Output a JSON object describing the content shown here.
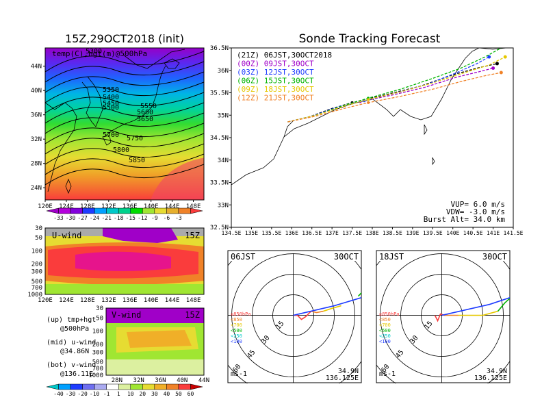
{
  "chart_data": [
    {
      "type": "heatmap",
      "panel": "upper-left map",
      "title": "15Z,29OCT2018 (init)",
      "label": "temp(C),hgt(m)@500hPa",
      "x_ticks": [
        "120E",
        "124E",
        "128E",
        "132E",
        "136E",
        "140E",
        "144E",
        "148E"
      ],
      "y_ticks": [
        "24N",
        "28N",
        "32N",
        "36N",
        "40N",
        "44N"
      ],
      "lon_range": [
        120,
        150
      ],
      "lat_range": [
        22,
        47
      ],
      "contour_labels": [
        "5300",
        "5350",
        "5400",
        "5450",
        "5500",
        "5550",
        "5600",
        "5650",
        "5700",
        "5750",
        "5800",
        "5850"
      ],
      "colorbar": [
        "-33",
        "-30",
        "-27",
        "-24",
        "-21",
        "-18",
        "-15",
        "-12",
        "-9",
        "-6",
        "-3"
      ],
      "colorbar_colors": [
        "#a000c8",
        "#b400dc",
        "#8200dc",
        "#1e3cff",
        "#00a0ff",
        "#00c8c8",
        "#00d28c",
        "#00dc00",
        "#a0e632",
        "#e6dc32",
        "#e6af2d",
        "#f08228",
        "#fa3c3c"
      ]
    },
    {
      "type": "heatmap",
      "panel": "middle-left cross section",
      "label": "U-wind",
      "time": "15Z",
      "x_ticks": [
        "120E",
        "124E",
        "128E",
        "132E",
        "136E",
        "140E",
        "144E",
        "148E"
      ],
      "y_ticks": [
        "30",
        "50",
        "100",
        "200",
        "300",
        "500",
        "700",
        "1000"
      ]
    },
    {
      "type": "heatmap",
      "panel": "lower-left cross section",
      "label": "V-wind",
      "time": "15Z",
      "x_ticks": [
        "28N",
        "32N",
        "36N",
        "40N",
        "44N"
      ],
      "y_ticks": [
        "30",
        "50",
        "100",
        "200",
        "300",
        "500",
        "700",
        "1000"
      ],
      "colorbar": [
        "-40",
        "-30",
        "-20",
        "-10",
        "-1",
        "1",
        "10",
        "20",
        "30",
        "40",
        "50",
        "60"
      ],
      "colorbar_colors": [
        "#00c8c8",
        "#00a0ff",
        "#1e3cff",
        "#6e6ef0",
        "#aaaaf0",
        "#ffffff",
        "#dcf0a0",
        "#a0e632",
        "#e6dc32",
        "#f0af28",
        "#f08228",
        "#fa3c3c",
        "#c80000"
      ]
    },
    {
      "type": "line",
      "panel": "upper-right track map",
      "title": "Sonde Tracking Forecast",
      "x_ticks": [
        "134.5E",
        "135E",
        "135.5E",
        "136E",
        "136.5E",
        "137E",
        "137.5E",
        "138E",
        "138.5E",
        "139E",
        "139.5E",
        "140E",
        "140.5E",
        "141E",
        "141.5E"
      ],
      "y_ticks": [
        "32.5N",
        "33N",
        "33.5N",
        "34N",
        "34.5N",
        "35N",
        "35.5N",
        "36N",
        "36.5N"
      ],
      "xlim": [
        134.5,
        141.5
      ],
      "ylim": [
        32.5,
        36.5
      ],
      "series": [
        {
          "name": "(21Z) 06JST,30OCT2018",
          "color": "#000000",
          "points": [
            [
              135.9,
              34.85
            ],
            [
              136.4,
              34.95
            ],
            [
              137.0,
              35.15
            ],
            [
              137.5,
              35.28
            ],
            [
              138.3,
              35.45
            ],
            [
              139.2,
              35.65
            ],
            [
              140.0,
              35.9
            ],
            [
              140.6,
              36.05
            ],
            [
              141.1,
              36.15
            ]
          ]
        },
        {
          "name": "(00Z) 09JST,30OCT",
          "color": "#a000c8",
          "points": [
            [
              135.9,
              34.85
            ],
            [
              136.5,
              34.98
            ],
            [
              137.2,
              35.18
            ],
            [
              137.7,
              35.3
            ],
            [
              138.5,
              35.45
            ],
            [
              139.3,
              35.62
            ],
            [
              140.1,
              35.85
            ],
            [
              140.7,
              35.98
            ],
            [
              141.0,
              36.05
            ]
          ]
        },
        {
          "name": "(03Z) 12JST,30OCT",
          "color": "#1e3cff",
          "points": [
            [
              135.9,
              34.85
            ],
            [
              136.5,
              34.98
            ],
            [
              137.2,
              35.2
            ],
            [
              137.8,
              35.32
            ],
            [
              138.6,
              35.5
            ],
            [
              139.4,
              35.7
            ],
            [
              140.1,
              35.95
            ],
            [
              140.6,
              36.15
            ],
            [
              140.9,
              36.3
            ]
          ]
        },
        {
          "name": "(06Z) 15JST,30OCT",
          "color": "#00b400",
          "points": [
            [
              135.9,
              34.85
            ],
            [
              136.6,
              35.0
            ],
            [
              137.3,
              35.22
            ],
            [
              137.9,
              35.38
            ],
            [
              138.7,
              35.58
            ],
            [
              139.5,
              35.82
            ],
            [
              140.2,
              36.05
            ],
            [
              140.8,
              36.3
            ],
            [
              141.3,
              36.55
            ]
          ]
        },
        {
          "name": "(09Z) 18JST,30OCT",
          "color": "#e6c800",
          "points": [
            [
              135.9,
              34.85
            ],
            [
              136.6,
              35.0
            ],
            [
              137.3,
              35.2
            ],
            [
              137.9,
              35.35
            ],
            [
              138.7,
              35.52
            ],
            [
              139.5,
              35.72
            ],
            [
              140.3,
              35.95
            ],
            [
              140.9,
              36.12
            ],
            [
              141.3,
              36.3
            ]
          ]
        },
        {
          "name": "(12Z) 21JST,30OCT",
          "color": "#f08228",
          "points": [
            [
              135.9,
              34.85
            ],
            [
              136.6,
              34.98
            ],
            [
              137.3,
              35.15
            ],
            [
              137.9,
              35.28
            ],
            [
              138.7,
              35.42
            ],
            [
              139.5,
              35.58
            ],
            [
              140.2,
              35.75
            ],
            [
              140.8,
              35.88
            ],
            [
              141.2,
              35.95
            ]
          ]
        }
      ],
      "annotations": [
        "VUP=  6.0 m/s",
        "VDW= -3.0 m/s",
        "Burst Alt= 34.0 km"
      ]
    },
    {
      "type": "line",
      "panel": "hodograph 06JST",
      "time": "06JST",
      "date": "30OCT",
      "ring_labels": [
        "15",
        "30",
        "45",
        "60"
      ],
      "legend": [
        "≥850hPa",
        "<850",
        "<700",
        "<500",
        "<250",
        "<100"
      ],
      "legend_colors": [
        "#fa3c3c",
        "#f08228",
        "#e6c800",
        "#00b400",
        "#00c8c8",
        "#1e3cff"
      ],
      "location": [
        "34.9N",
        "136.125E"
      ],
      "unit": "ms-1"
    },
    {
      "type": "line",
      "panel": "hodograph 18JST",
      "time": "18JST",
      "date": "30OCT",
      "ring_labels": [
        "15",
        "30",
        "45",
        "60"
      ],
      "legend": [
        "≥850hPa",
        "<850",
        "<700",
        "<500",
        "<250",
        "<100"
      ],
      "legend_colors": [
        "#fa3c3c",
        "#f08228",
        "#e6c800",
        "#00b400",
        "#00c8c8",
        "#1e3cff"
      ],
      "location": [
        "34.9N",
        "136.125E"
      ],
      "unit": "ms-1"
    }
  ],
  "side_notes": [
    {
      "line1": "(up) tmp+hgt",
      "line2": "@500hPa"
    },
    {
      "line1": "(mid) u-wind",
      "line2": "@34.86N"
    },
    {
      "line1": "(bot) v-wind",
      "line2": "@136.11E"
    }
  ]
}
